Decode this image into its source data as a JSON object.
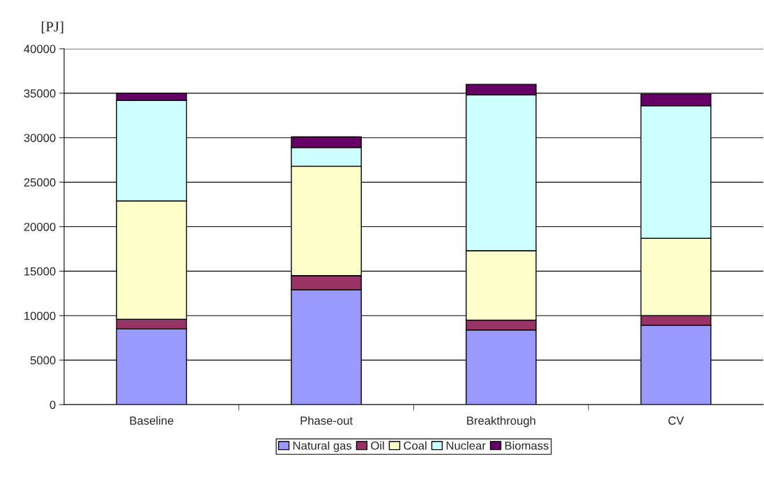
{
  "chart_data": {
    "type": "bar",
    "stacked": true,
    "ylabel": "[PJ]",
    "categories": [
      "Baseline",
      "Phase-out",
      "Breakthrough",
      "CV"
    ],
    "series": [
      {
        "name": "Natural gas",
        "color": "#9999ff",
        "values": [
          8500,
          12900,
          8400,
          8900
        ]
      },
      {
        "name": "Oil",
        "color": "#993366",
        "values": [
          1100,
          1600,
          1100,
          1100
        ]
      },
      {
        "name": "Coal",
        "color": "#ffffcc",
        "values": [
          13300,
          12300,
          7800,
          8700
        ]
      },
      {
        "name": "Nuclear",
        "color": "#ccffff",
        "values": [
          11300,
          2100,
          17500,
          14900
        ]
      },
      {
        "name": "Biomass",
        "color": "#660066",
        "values": [
          800,
          1200,
          1200,
          1300
        ]
      }
    ],
    "ylim": [
      0,
      40000
    ],
    "yticks": [
      0,
      5000,
      10000,
      15000,
      20000,
      25000,
      30000,
      35000,
      40000
    ],
    "grid": "y",
    "legend": "bottom"
  }
}
